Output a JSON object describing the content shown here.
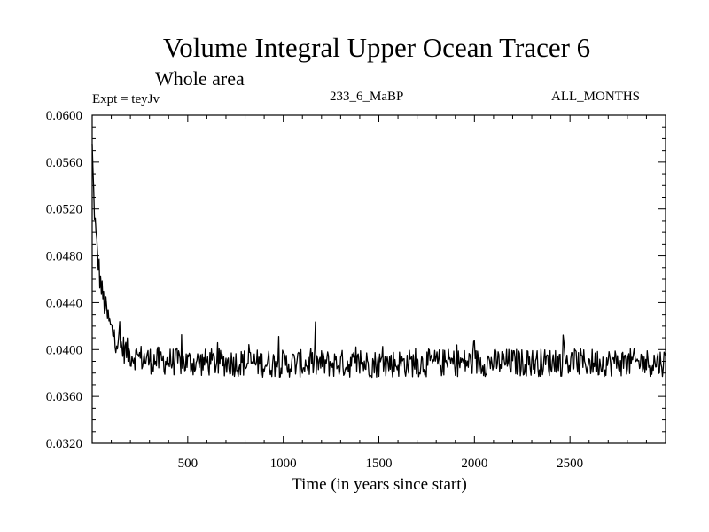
{
  "chart_data": {
    "type": "line",
    "title": "Volume Integral Upper Ocean Tracer 6",
    "subtitle": "Whole area",
    "experiment_label": "Expt = teyJv",
    "run_label": "233_6_MaBP",
    "months_label": "ALL_MONTHS",
    "xlabel": "Time (in years since start)",
    "ylabel": "",
    "xlim": [
      0,
      3000
    ],
    "ylim": [
      0.032,
      0.06
    ],
    "x_ticks": [
      500,
      1000,
      1500,
      2000,
      2500
    ],
    "y_ticks": [
      "0.0320",
      "0.0360",
      "0.0400",
      "0.0440",
      "0.0480",
      "0.0520",
      "0.0560",
      "0.0600"
    ],
    "series": [
      {
        "name": "Volume integral",
        "color": "#000000",
        "x": [
          0,
          5,
          10,
          15,
          20,
          30,
          40,
          50,
          60,
          80,
          100,
          125,
          150,
          175,
          200,
          250,
          300,
          400,
          500,
          700,
          1000,
          1500,
          2000,
          2500,
          3000
        ],
        "y": [
          0.0572,
          0.0545,
          0.0525,
          0.051,
          0.0495,
          0.0478,
          0.0462,
          0.045,
          0.0442,
          0.0428,
          0.0417,
          0.0409,
          0.0403,
          0.0399,
          0.0396,
          0.0393,
          0.0391,
          0.039,
          0.0389,
          0.0389,
          0.0388,
          0.0388,
          0.0389,
          0.0389,
          0.0389
        ],
        "noise_amplitude": 0.0012,
        "sample_step_years": 4
      }
    ]
  }
}
